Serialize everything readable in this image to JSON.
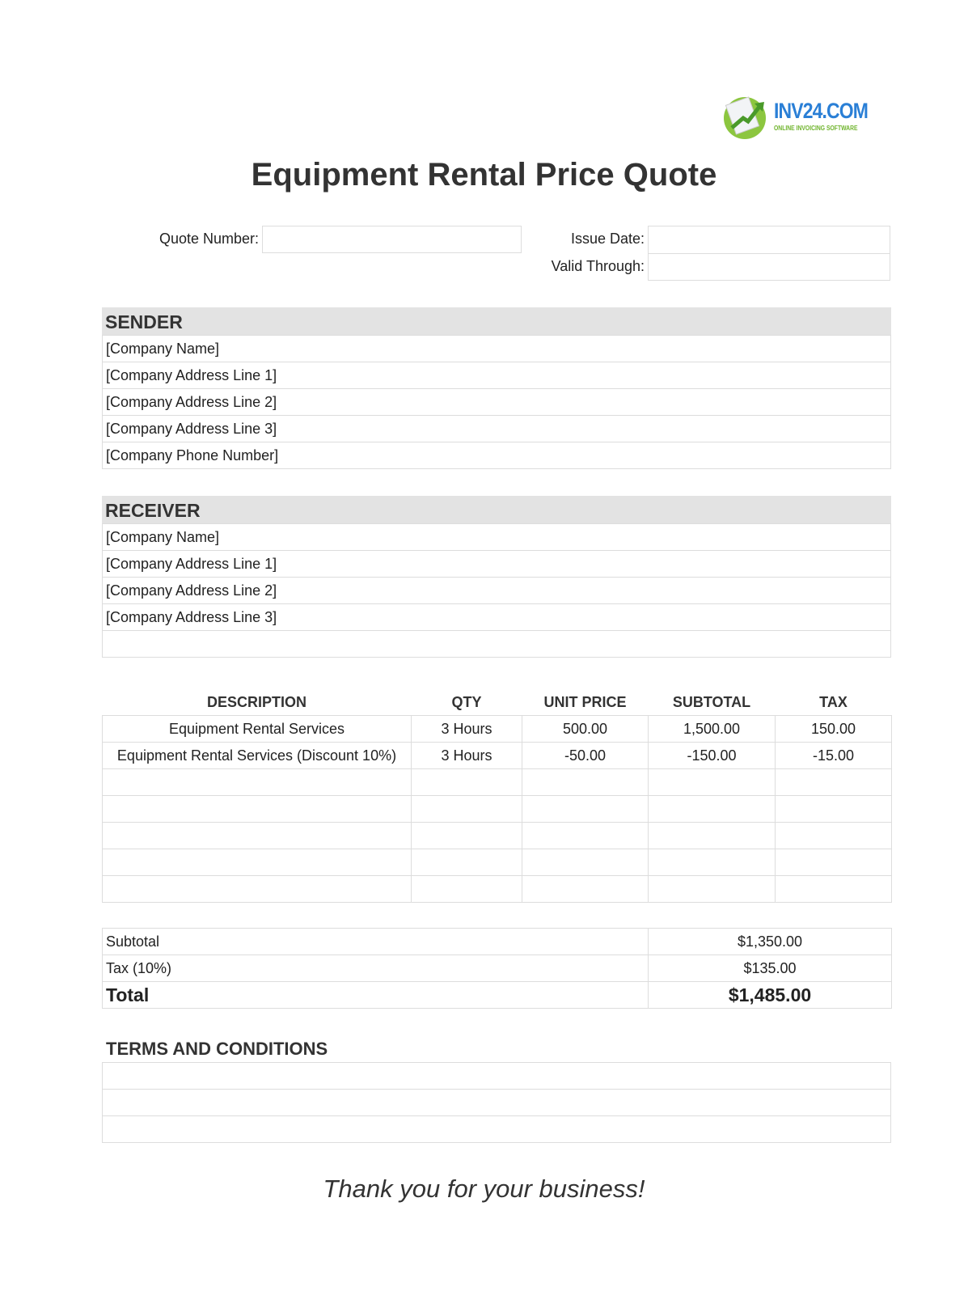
{
  "logo": {
    "text": "INV24.COM",
    "tagline": "ONLINE INVOICING SOFTWARE",
    "colors": {
      "blue": "#2a7fd6",
      "green": "#6fb42c"
    }
  },
  "title": "Equipment Rental Price Quote",
  "meta": {
    "quote_number_label": "Quote Number:",
    "quote_number_value": "",
    "issue_date_label": "Issue Date:",
    "issue_date_value": "",
    "valid_through_label": "Valid Through:",
    "valid_through_value": ""
  },
  "sender": {
    "heading": "SENDER",
    "lines": [
      "[Company Name]",
      "[Company Address Line 1]",
      "[Company Address Line 2]",
      "[Company Address Line 3]",
      "[Company Phone Number]"
    ]
  },
  "receiver": {
    "heading": "RECEIVER",
    "lines": [
      "[Company Name]",
      "[Company Address Line 1]",
      "[Company Address Line 2]",
      "[Company Address Line 3]",
      ""
    ]
  },
  "items": {
    "columns": [
      "DESCRIPTION",
      "QTY",
      "UNIT PRICE",
      "SUBTOTAL",
      "TAX"
    ],
    "rows": [
      [
        "Equipment Rental Services",
        "3 Hours",
        "500.00",
        "1,500.00",
        "150.00"
      ],
      [
        "Equipment Rental Services (Discount 10%)",
        "3 Hours",
        "-50.00",
        "-150.00",
        "-15.00"
      ],
      [
        "",
        "",
        "",
        "",
        ""
      ],
      [
        "",
        "",
        "",
        "",
        ""
      ],
      [
        "",
        "",
        "",
        "",
        ""
      ],
      [
        "",
        "",
        "",
        "",
        ""
      ],
      [
        "",
        "",
        "",
        "",
        ""
      ]
    ]
  },
  "totals": {
    "subtotal_label": "Subtotal",
    "subtotal_value": "$1,350.00",
    "tax_label": "Tax (10%)",
    "tax_value": "$135.00",
    "total_label": "Total",
    "total_value": "$1,485.00"
  },
  "terms": {
    "heading": "TERMS AND CONDITIONS",
    "lines": [
      "",
      "",
      ""
    ]
  },
  "footer": {
    "thanks": "Thank you for your business!"
  }
}
